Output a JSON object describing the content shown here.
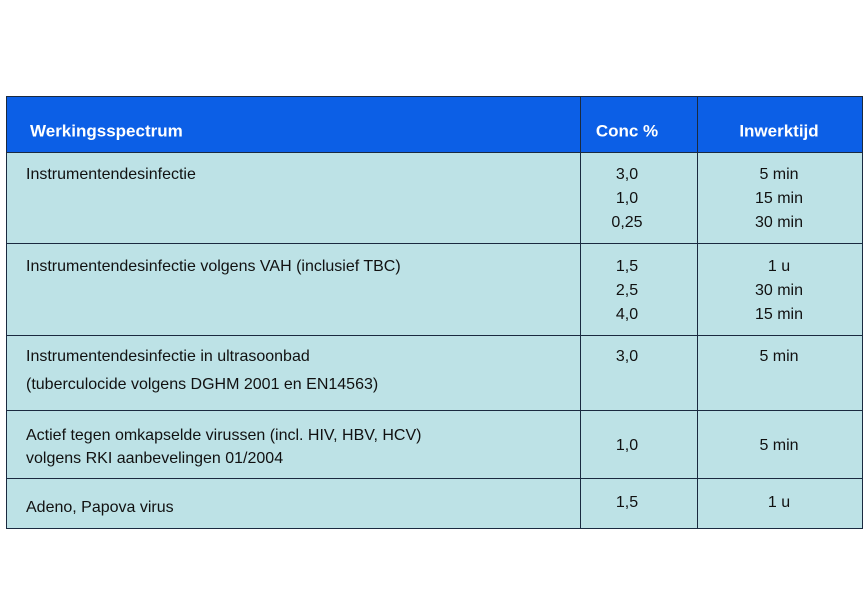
{
  "table": {
    "header": [
      "Werkingsspectrum",
      "Conc %",
      "Inwerktijd"
    ],
    "rows": [
      {
        "label": [
          "Instrumentendesinfectie"
        ],
        "conc": [
          "3,0",
          "1,0",
          "0,25"
        ],
        "time": [
          "5 min",
          "15 min",
          "30 min"
        ]
      },
      {
        "label": [
          "Instrumentendesinfectie volgens VAH (inclusief TBC)"
        ],
        "conc": [
          "1,5",
          "2,5",
          "4,0"
        ],
        "time": [
          "1 u",
          "30 min",
          "15 min"
        ]
      },
      {
        "label": [
          "Instrumentendesinfectie in ultrasoonbad",
          "(tuberculocide volgens DGHM 2001 en EN14563)"
        ],
        "conc": [
          "3,0"
        ],
        "time": [
          "5 min"
        ]
      },
      {
        "label": [
          "Actief tegen omkapselde virussen (incl. HIV, HBV, HCV)",
          "volgens RKI aanbevelingen 01/2004"
        ],
        "conc": [
          "1,0"
        ],
        "time": [
          "5 min"
        ]
      },
      {
        "label": [
          "Adeno, Papova virus"
        ],
        "conc": [
          "1,5"
        ],
        "time": [
          "1 u"
        ]
      }
    ]
  }
}
